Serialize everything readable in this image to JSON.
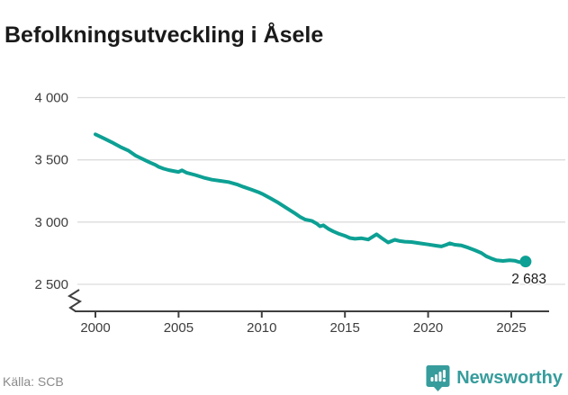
{
  "title": "Befolkningsutveckling i Åsele",
  "source_label": "Källa: SCB",
  "logo": {
    "name": "Newsworthy",
    "text": "Newsworthy"
  },
  "colors": {
    "line": "#0da094",
    "dot": "#0da094",
    "grid": "#dcdcdc",
    "axis": "#3f3f3f",
    "tick_text": "#3d3d3d",
    "title_text": "#1a1a1a",
    "source_text": "#8a8a8a",
    "logo_teal": "#379c9c"
  },
  "chart_data": {
    "type": "line",
    "title": "Befolkningsutveckling i Åsele",
    "series_name": "Befolkning i Åsele",
    "xlabel": "",
    "ylabel": "",
    "grid": "horizontal",
    "axis_break": true,
    "ylim": [
      2500,
      4000
    ],
    "xlim": [
      2000,
      2026
    ],
    "y_ticks": [
      4000,
      3500,
      3000,
      2500
    ],
    "y_tick_labels": [
      "4 000",
      "3 500",
      "3 000",
      "2 500"
    ],
    "x_ticks": [
      2000,
      2005,
      2010,
      2015,
      2020,
      2025
    ],
    "x_tick_labels": [
      "2000",
      "2005",
      "2010",
      "2015",
      "2020",
      "2025"
    ],
    "end_label": "2 683",
    "end_point": {
      "x": 2025.86,
      "value": 2683
    },
    "x": [
      2000.0,
      2000.5,
      2001.0,
      2001.5,
      2002.0,
      2002.4,
      2002.7,
      2003.0,
      2003.3,
      2003.6,
      2003.8,
      2004.1,
      2004.4,
      2004.7,
      2005.0,
      2005.2,
      2005.5,
      2006.0,
      2006.5,
      2007.0,
      2007.5,
      2008.0,
      2008.5,
      2008.9,
      2009.4,
      2009.8,
      2010.1,
      2010.5,
      2011.0,
      2011.5,
      2012.0,
      2012.3,
      2012.6,
      2013.0,
      2013.3,
      2013.5,
      2013.7,
      2014.0,
      2014.3,
      2014.6,
      2015.0,
      2015.3,
      2015.6,
      2016.0,
      2016.4,
      2016.9,
      2017.2,
      2017.6,
      2018.0,
      2018.3,
      2018.6,
      2019.0,
      2019.5,
      2020.0,
      2020.5,
      2020.8,
      2021.1,
      2021.3,
      2021.6,
      2022.0,
      2022.4,
      2022.8,
      2023.2,
      2023.5,
      2023.8,
      2024.1,
      2024.5,
      2024.9,
      2025.2,
      2025.5,
      2025.86
    ],
    "values": [
      3705,
      3673,
      3640,
      3604,
      3573,
      3535,
      3516,
      3496,
      3477,
      3460,
      3444,
      3429,
      3418,
      3410,
      3403,
      3416,
      3396,
      3378,
      3357,
      3341,
      3331,
      3322,
      3303,
      3283,
      3260,
      3240,
      3222,
      3193,
      3155,
      3112,
      3070,
      3042,
      3021,
      3010,
      2988,
      2966,
      2974,
      2946,
      2925,
      2908,
      2890,
      2872,
      2866,
      2870,
      2860,
      2902,
      2872,
      2836,
      2858,
      2848,
      2843,
      2840,
      2830,
      2820,
      2810,
      2804,
      2818,
      2830,
      2818,
      2812,
      2795,
      2775,
      2752,
      2725,
      2708,
      2693,
      2688,
      2694,
      2690,
      2678,
      2683
    ]
  }
}
